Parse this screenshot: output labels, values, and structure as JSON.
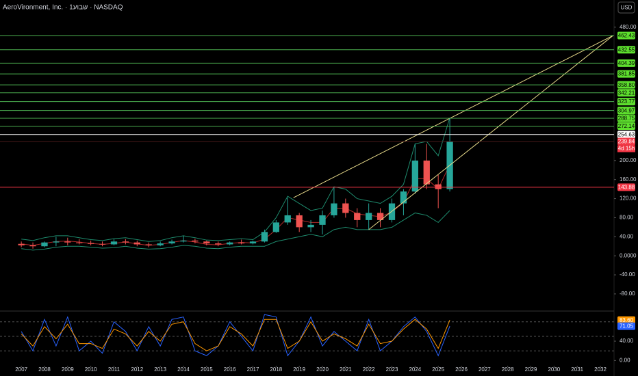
{
  "chart_data": {
    "type": "candlestick",
    "title": "AeroVironment, Inc. · 1שבוע · NASDAQ",
    "currency_button": "USD",
    "x": [
      2007.0,
      2007.5,
      2008.0,
      2008.5,
      2009.0,
      2009.5,
      2010.0,
      2010.5,
      2011.0,
      2011.5,
      2012.0,
      2012.5,
      2013.0,
      2013.5,
      2014.0,
      2014.5,
      2015.0,
      2015.5,
      2016.0,
      2016.5,
      2017.0,
      2017.5,
      2018.0,
      2018.5,
      2019.0,
      2019.5,
      2020.0,
      2020.5,
      2021.0,
      2021.5,
      2022.0,
      2022.5,
      2023.0,
      2023.5,
      2024.0,
      2024.5,
      2025.0,
      2025.5
    ],
    "candles": [
      [
        25,
        30,
        18,
        22
      ],
      [
        22,
        28,
        15,
        20
      ],
      [
        20,
        30,
        18,
        28
      ],
      [
        28,
        40,
        20,
        30
      ],
      [
        30,
        38,
        22,
        28
      ],
      [
        28,
        35,
        24,
        27
      ],
      [
        27,
        32,
        22,
        25
      ],
      [
        25,
        30,
        20,
        24
      ],
      [
        24,
        35,
        22,
        30
      ],
      [
        30,
        35,
        24,
        28
      ],
      [
        28,
        32,
        20,
        24
      ],
      [
        24,
        28,
        18,
        22
      ],
      [
        22,
        30,
        20,
        26
      ],
      [
        26,
        34,
        24,
        30
      ],
      [
        30,
        42,
        28,
        32
      ],
      [
        32,
        36,
        26,
        30
      ],
      [
        30,
        32,
        22,
        26
      ],
      [
        26,
        30,
        20,
        24
      ],
      [
        24,
        30,
        22,
        28
      ],
      [
        28,
        34,
        24,
        26
      ],
      [
        26,
        32,
        24,
        30
      ],
      [
        30,
        55,
        28,
        50
      ],
      [
        50,
        75,
        48,
        70
      ],
      [
        70,
        122,
        65,
        85
      ],
      [
        85,
        90,
        50,
        60
      ],
      [
        60,
        75,
        50,
        65
      ],
      [
        65,
        95,
        45,
        85
      ],
      [
        85,
        145,
        80,
        110
      ],
      [
        110,
        120,
        80,
        90
      ],
      [
        90,
        100,
        60,
        75
      ],
      [
        75,
        110,
        55,
        90
      ],
      [
        90,
        100,
        60,
        75
      ],
      [
        75,
        120,
        70,
        110
      ],
      [
        110,
        140,
        85,
        135
      ],
      [
        135,
        235,
        130,
        200
      ],
      [
        200,
        235,
        140,
        150
      ],
      [
        150,
        170,
        100,
        140
      ],
      [
        140,
        288,
        135,
        240
      ]
    ],
    "up_color": "#26a69a",
    "down_color": "#ef5350",
    "bands": [
      {
        "color": "#1e8c6e",
        "values": [
          35,
          32,
          38,
          42,
          42,
          38,
          34,
          32,
          36,
          38,
          34,
          30,
          32,
          38,
          42,
          38,
          33,
          32,
          34,
          36,
          34,
          50,
          80,
          125,
          110,
          95,
          100,
          145,
          140,
          120,
          115,
          110,
          125,
          150,
          235,
          240,
          210,
          290
        ]
      },
      {
        "color": "#b02a2a",
        "values": [
          25,
          22,
          26,
          30,
          31,
          29,
          26,
          24,
          26,
          29,
          25,
          22,
          24,
          28,
          32,
          29,
          24,
          23,
          26,
          28,
          27,
          35,
          55,
          80,
          75,
          70,
          70,
          100,
          100,
          88,
          85,
          82,
          92,
          112,
          162,
          162,
          140,
          192
        ]
      },
      {
        "color": "#1e8c6e",
        "values": [
          15,
          12,
          14,
          18,
          20,
          20,
          18,
          16,
          17,
          20,
          16,
          14,
          15,
          18,
          22,
          20,
          16,
          15,
          18,
          20,
          20,
          20,
          30,
          35,
          40,
          45,
          40,
          55,
          60,
          55,
          55,
          55,
          60,
          75,
          90,
          85,
          70,
          95
        ]
      }
    ],
    "trendlines": [
      {
        "color": "#e6d98a",
        "x": [
          2018.75,
          2032.55
        ],
        "y": [
          122,
          462.43
        ]
      },
      {
        "color": "#e6d98a",
        "x": [
          2022.0,
          2032.55
        ],
        "y": [
          55,
          462.43
        ]
      }
    ],
    "levels": [
      {
        "value": 462.43,
        "label": "462.43",
        "color": "#4caf50",
        "box": "#5ee02e"
      },
      {
        "value": 432.55,
        "label": "432.55",
        "color": "#4caf50",
        "box": "#5ee02e"
      },
      {
        "value": 404.39,
        "label": "404.39",
        "color": "#4caf50",
        "box": "#5ee02e"
      },
      {
        "value": 381.85,
        "label": "381.85",
        "color": "#4caf50",
        "box": "#5ee02e"
      },
      {
        "value": 358.8,
        "label": "358.80",
        "color": "#4caf50",
        "box": "#5ee02e"
      },
      {
        "value": 342.21,
        "label": "342.21",
        "color": "#4caf50",
        "box": "#5ee02e"
      },
      {
        "value": 323.77,
        "label": "323.77",
        "color": "#4caf50",
        "box": "#5ee02e"
      },
      {
        "value": 304.97,
        "label": "304.97",
        "color": "#4caf50",
        "box": "#5ee02e"
      },
      {
        "value": 288.75,
        "label": "288.75",
        "color": "#4caf50",
        "box": "#5ee02e"
      },
      {
        "value": 272.14,
        "label": "272.14",
        "color": "#4caf50",
        "box": "#5ee02e"
      },
      {
        "value": 254.63,
        "label": "254.63",
        "color": "#ffffff",
        "box": "#ffffff"
      },
      {
        "value": 239.84,
        "label": "239.84",
        "color": "#4a1a1a",
        "box": "#f23645"
      },
      {
        "value": 143.88,
        "label": "143.88",
        "color": "#f23645",
        "box": "#f23645"
      }
    ],
    "countdown": "4d 15h",
    "xlim": [
      2006.08,
      2032.59
    ],
    "xticks": [
      2007,
      2008,
      2009,
      2010,
      2011,
      2012,
      2013,
      2014,
      2015,
      2016,
      2017,
      2018,
      2019,
      2020,
      2021,
      2022,
      2023,
      2024,
      2025,
      2026,
      2027,
      2028,
      2029,
      2030,
      2031,
      2032
    ],
    "ylim": [
      -116,
      537
    ],
    "yticks": [
      {
        "value": 480,
        "label": "480.00"
      },
      {
        "value": 200,
        "label": "200.00"
      },
      {
        "value": 160,
        "label": "160.00"
      },
      {
        "value": 120,
        "label": "120.00"
      },
      {
        "value": 80,
        "label": "80.00"
      },
      {
        "value": 40,
        "label": "40.00"
      },
      {
        "value": 0,
        "label": "0.0000"
      },
      {
        "value": -40,
        "label": "-40.00"
      },
      {
        "value": -80,
        "label": "-80.00"
      }
    ],
    "stochastic": {
      "ylim": [
        -8,
        98
      ],
      "yticks": [
        {
          "value": 40,
          "label": "40.00"
        },
        {
          "value": 0,
          "label": "0.00"
        }
      ],
      "levels": [
        80,
        50,
        20
      ],
      "series": [
        {
          "color": "#2962ff",
          "values": [
            60,
            20,
            85,
            30,
            90,
            20,
            40,
            15,
            80,
            60,
            20,
            70,
            30,
            85,
            90,
            20,
            10,
            30,
            80,
            50,
            20,
            95,
            90,
            10,
            40,
            90,
            30,
            60,
            40,
            20,
            85,
            20,
            40,
            70,
            90,
            60,
            10,
            71.05
          ]
        },
        {
          "color": "#ff9800",
          "values": [
            55,
            30,
            70,
            45,
            75,
            35,
            35,
            25,
            65,
            55,
            30,
            60,
            40,
            75,
            80,
            35,
            20,
            30,
            70,
            55,
            30,
            85,
            85,
            25,
            40,
            80,
            40,
            55,
            45,
            30,
            75,
            35,
            40,
            65,
            85,
            65,
            25,
            83.6
          ]
        }
      ],
      "readouts": [
        {
          "value": 83.6,
          "label": "83.60",
          "color": "#ff9800"
        },
        {
          "value": 71.05,
          "label": "71.05",
          "color": "#2962ff"
        }
      ]
    }
  }
}
